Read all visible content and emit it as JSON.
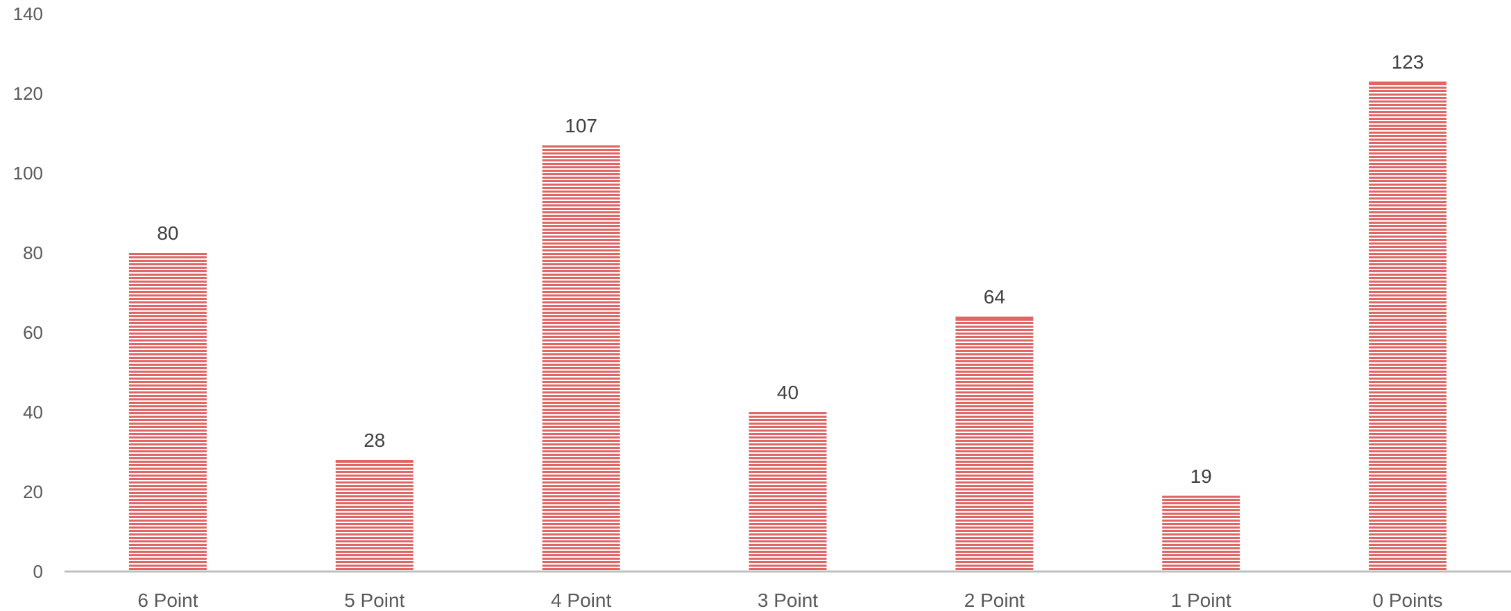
{
  "chart_data": {
    "type": "bar",
    "title": "",
    "xlabel": "",
    "ylabel": "",
    "categories": [
      "6 Point",
      "5 Point",
      "4 Point",
      "3 Point",
      "2 Point",
      "1 Point",
      "0 Points"
    ],
    "values": [
      80,
      28,
      107,
      40,
      64,
      19,
      123
    ],
    "data_labels": [
      "80",
      "28",
      "107",
      "40",
      "64",
      "19",
      "123"
    ],
    "y_ticks": [
      "0",
      "20",
      "40",
      "60",
      "80",
      "100",
      "120",
      "140"
    ],
    "ylim": [
      0,
      140
    ],
    "grid": false,
    "legend": "none",
    "colors": {
      "bar": "#e06666",
      "bar_stripe": "#ffffff",
      "axis": "#bfbfbf",
      "text": "#595959"
    }
  }
}
